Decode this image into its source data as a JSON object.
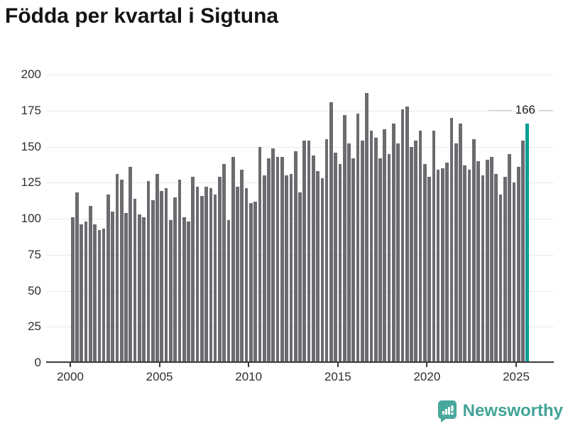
{
  "title": "Födda per kvartal i Sigtuna",
  "chart_data": {
    "type": "bar",
    "title": "Födda per kvartal i Sigtuna",
    "x_start": "2000 Q1",
    "x_end": "2025 Q3",
    "x_tick_labels": [
      "2000",
      "2005",
      "2010",
      "2015",
      "2020",
      "2025"
    ],
    "y_ticks": [
      0,
      25,
      50,
      75,
      100,
      125,
      150,
      175,
      200
    ],
    "ylim": [
      0,
      200
    ],
    "grid": true,
    "values": [
      101,
      118,
      96,
      98,
      109,
      96,
      92,
      93,
      117,
      105,
      131,
      127,
      104,
      136,
      114,
      103,
      101,
      126,
      113,
      131,
      119,
      121,
      99,
      115,
      127,
      101,
      98,
      129,
      122,
      116,
      122,
      121,
      117,
      129,
      138,
      99,
      143,
      122,
      134,
      121,
      111,
      112,
      150,
      130,
      142,
      149,
      143,
      143,
      130,
      131,
      147,
      118,
      154,
      154,
      144,
      133,
      128,
      155,
      181,
      146,
      138,
      172,
      152,
      142,
      173,
      154,
      187,
      161,
      156,
      142,
      162,
      145,
      166,
      152,
      176,
      178,
      150,
      154,
      161,
      138,
      129,
      161,
      134,
      135,
      139,
      170,
      152,
      166,
      137,
      134,
      155,
      140,
      130,
      141,
      143,
      131,
      117,
      129,
      145,
      125,
      136,
      154,
      166
    ],
    "highlight_index": 102,
    "highlight_value_label": "166",
    "bar_color": "#6b6b70",
    "highlight_color": "#0c9e96",
    "grid_color": "#e9e9e9",
    "axis_color": "#3a3a3a"
  },
  "annotation": {
    "label": "166"
  },
  "branding": {
    "name": "Newsworthy",
    "color": "#41a396",
    "icon": "bar-chart-bubble-icon"
  }
}
